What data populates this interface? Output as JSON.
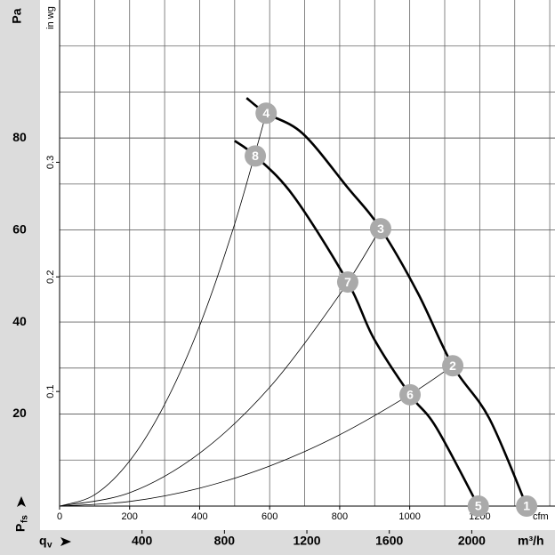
{
  "chart_data": {
    "type": "line",
    "y_unit": "Pa",
    "y2_unit": "in wg",
    "x_unit": "cfm",
    "x2_unit": "m³/h",
    "y_label": "P",
    "y_label_sub": "fs",
    "x_label": "q",
    "x_label_sub": "v",
    "xlim": [
      0,
      1415
    ],
    "ylim": [
      0,
      110
    ],
    "y2lim": [
      0,
      0.4416
    ],
    "x2lim": [
      0,
      2404
    ],
    "xticks": [
      0,
      200,
      400,
      600,
      800,
      1000,
      1200
    ],
    "yticks": [
      20,
      40,
      60,
      80
    ],
    "y2ticks": [
      0.1,
      0.2,
      0.3
    ],
    "x2ticks": [
      400,
      800,
      1200,
      1600,
      2000
    ],
    "grid": true,
    "series": [
      {
        "weight": "bold",
        "color": "#000000",
        "x": [
          534,
          590,
          694,
          821,
          917,
          1024,
          1123,
          1227,
          1334
        ],
        "values": [
          88.7,
          85.4,
          81,
          69.4,
          60.3,
          46.2,
          30.5,
          19.1,
          0
        ]
      },
      {
        "weight": "bold",
        "color": "#000000",
        "x": [
          500,
          559,
          668,
          823,
          897,
          1001,
          1075,
          1196
        ],
        "values": [
          79.4,
          76.1,
          67.4,
          48.7,
          36.5,
          24.2,
          17.2,
          0
        ]
      },
      {
        "weight": "thin",
        "color": "#000000",
        "x": [
          0,
          100,
          200,
          300,
          400,
          500,
          590
        ],
        "values": [
          0,
          2.45,
          9.8,
          22.1,
          39.2,
          61.3,
          85.3
        ]
      },
      {
        "weight": "thin",
        "color": "#000000",
        "x": [
          0,
          200,
          400,
          600,
          800,
          917
        ],
        "values": [
          0,
          2.9,
          11.5,
          25.8,
          46,
          60.4
        ]
      },
      {
        "weight": "thin",
        "color": "#000000",
        "x": [
          0,
          200,
          400,
          600,
          800,
          1000,
          1123
        ],
        "values": [
          0,
          1,
          3.9,
          8.7,
          15.5,
          24.2,
          30.5
        ]
      }
    ],
    "points": [
      {
        "label": "1",
        "x": 1334,
        "y": 0
      },
      {
        "label": "2",
        "x": 1123,
        "y": 30.5
      },
      {
        "label": "3",
        "x": 917,
        "y": 60.3
      },
      {
        "label": "4",
        "x": 590,
        "y": 85.4
      },
      {
        "label": "5",
        "x": 1196,
        "y": 0
      },
      {
        "label": "6",
        "x": 1001,
        "y": 24.2
      },
      {
        "label": "7",
        "x": 823,
        "y": 48.7
      },
      {
        "label": "8",
        "x": 559,
        "y": 76.1
      }
    ],
    "point_color": "#aaaaaa"
  }
}
